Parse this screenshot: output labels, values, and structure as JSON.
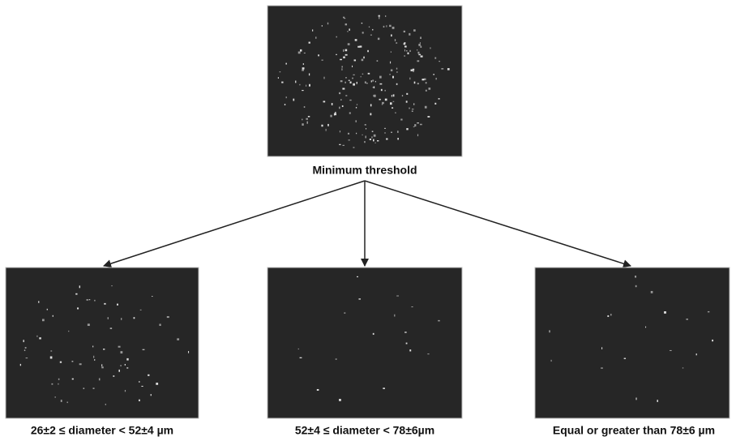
{
  "top": {
    "label": "Minimum threshold"
  },
  "panels": [
    {
      "label": "26±2 ≤ diameter < 52±4 µm"
    },
    {
      "label": "52±4 ≤ diameter < 78±6µm"
    },
    {
      "label": "Equal or greater than 78±6 µm"
    }
  ]
}
